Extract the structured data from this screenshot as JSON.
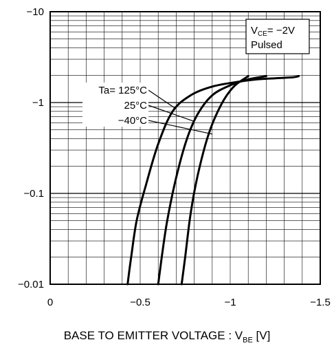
{
  "chart_data": {
    "type": "line",
    "xlabel": "BASE TO EMITTER VOLTAGE : V",
    "xlabel_sub": "BE",
    "xlabel_unit": " [V]",
    "ylabel": "",
    "xlim": [
      0,
      -1.5
    ],
    "ylim": [
      -0.01,
      -10
    ],
    "yscale": "log",
    "grid": true,
    "x_ticks": [
      "0",
      "−0.5",
      "−1",
      "−1.5"
    ],
    "y_ticks": [
      "−10",
      "−1",
      "−0.1",
      "−0.01"
    ],
    "conditions": {
      "line1_main": "V",
      "line1_sub": "CE",
      "line1_rest": "= −2V",
      "line2": "Pulsed"
    },
    "series": [
      {
        "name": "Ta= 125°C",
        "x": [
          -0.43,
          -0.45,
          -0.48,
          -0.53,
          -0.6,
          -0.68,
          -0.78,
          -0.9,
          -1.05,
          -1.15,
          -1.25,
          -1.35,
          -1.38
        ],
        "y": [
          -0.01,
          -0.02,
          -0.05,
          -0.12,
          -0.35,
          -0.8,
          -1.2,
          -1.5,
          -1.7,
          -1.8,
          -1.85,
          -1.9,
          -1.95
        ]
      },
      {
        "name": "25°C",
        "x": [
          -0.6,
          -0.62,
          -0.65,
          -0.7,
          -0.76,
          -0.82,
          -0.9,
          -1.0,
          -1.1,
          -1.2
        ],
        "y": [
          -0.01,
          -0.02,
          -0.05,
          -0.15,
          -0.4,
          -0.75,
          -1.2,
          -1.55,
          -1.8,
          -1.95
        ]
      },
      {
        "name": "−40°C",
        "x": [
          -0.73,
          -0.75,
          -0.78,
          -0.82,
          -0.88,
          -0.95,
          -1.02,
          -1.1
        ],
        "y": [
          -0.01,
          -0.02,
          -0.06,
          -0.16,
          -0.45,
          -0.95,
          -1.5,
          -1.95
        ]
      }
    ]
  }
}
